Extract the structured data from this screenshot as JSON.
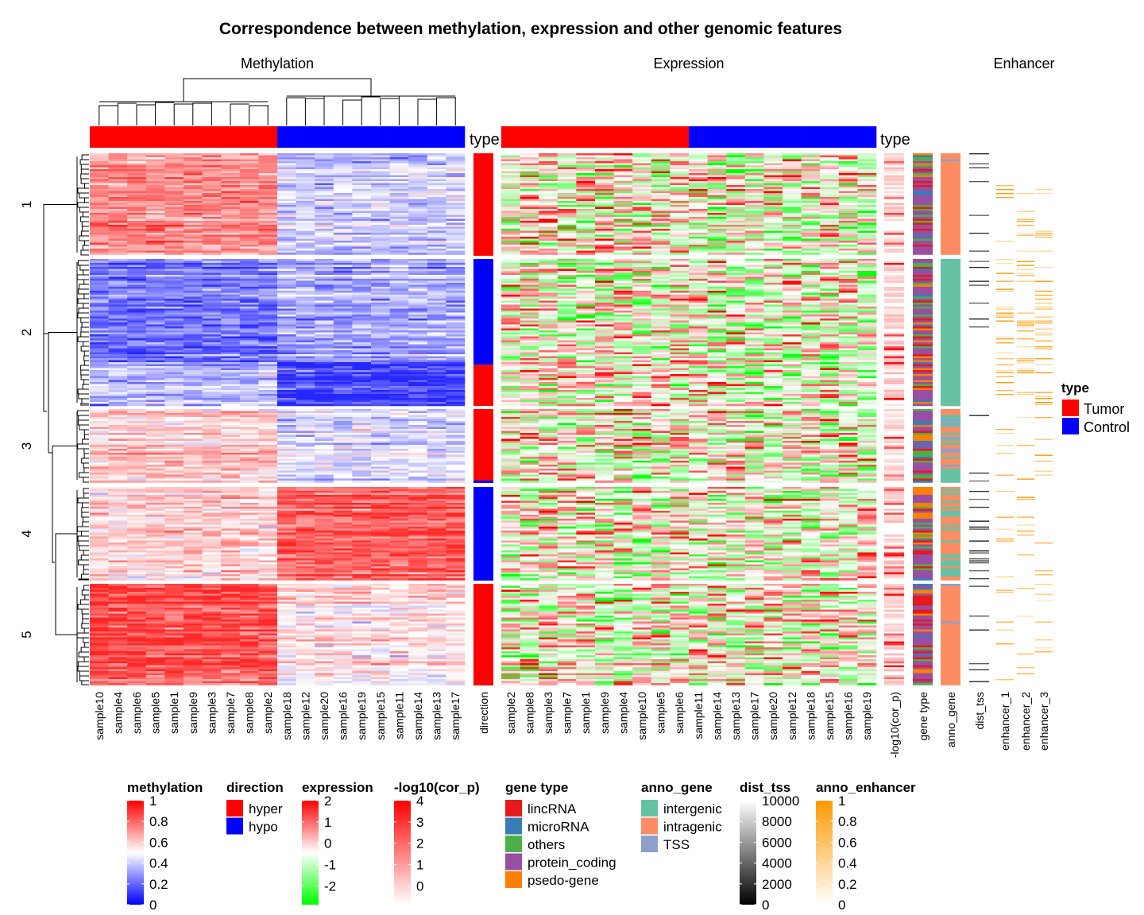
{
  "title": "Correspondence between methylation, expression and other genomic features",
  "panel_titles": {
    "methylation": "Methylation",
    "expression": "Expression",
    "enhancer": "Enhancer"
  },
  "type_label": "type",
  "chart_data": {
    "type": "heatmap",
    "title": "Correspondence between methylation, expression and other genomic features",
    "row_clusters": [
      "1",
      "2",
      "3",
      "4",
      "5"
    ],
    "methylation": {
      "columns": [
        "sample10",
        "sample4",
        "sample6",
        "sample5",
        "sample1",
        "sample9",
        "sample3",
        "sample7",
        "sample8",
        "sample2",
        "sample18",
        "sample12",
        "sample20",
        "sample16",
        "sample19",
        "sample15",
        "sample11",
        "sample14",
        "sample13",
        "sample17"
      ],
      "column_type": [
        "Tumor",
        "Tumor",
        "Tumor",
        "Tumor",
        "Tumor",
        "Tumor",
        "Tumor",
        "Tumor",
        "Tumor",
        "Tumor",
        "Control",
        "Control",
        "Control",
        "Control",
        "Control",
        "Control",
        "Control",
        "Control",
        "Control",
        "Control"
      ],
      "approx_cluster_means": [
        {
          "cluster": "1",
          "Tumor": 0.78,
          "Control": 0.4
        },
        {
          "cluster": "2",
          "Tumor": 0.18,
          "Control": 0.3
        },
        {
          "cluster": "3",
          "Tumor": 0.62,
          "Control": 0.42
        },
        {
          "cluster": "4",
          "Tumor": 0.62,
          "Control": 0.88
        },
        {
          "cluster": "5",
          "Tumor": 0.9,
          "Control": 0.55
        }
      ]
    },
    "direction": {
      "label": "direction",
      "approx_by_cluster": [
        {
          "cluster": "1",
          "value": "hyper"
        },
        {
          "cluster": "2",
          "value": "hypo (upper), hyper (lower)"
        },
        {
          "cluster": "3",
          "value": "hyper"
        },
        {
          "cluster": "4",
          "value": "hypo"
        },
        {
          "cluster": "5",
          "value": "hyper"
        }
      ]
    },
    "expression": {
      "columns": [
        "sample2",
        "sample8",
        "sample3",
        "sample7",
        "sample1",
        "sample9",
        "sample4",
        "sample10",
        "sample5",
        "sample6",
        "sample11",
        "sample14",
        "sample13",
        "sample17",
        "sample20",
        "sample12",
        "sample18",
        "sample15",
        "sample16",
        "sample19"
      ],
      "column_type": [
        "Tumor",
        "Tumor",
        "Tumor",
        "Tumor",
        "Tumor",
        "Tumor",
        "Tumor",
        "Tumor",
        "Tumor",
        "Tumor",
        "Control",
        "Control",
        "Control",
        "Control",
        "Control",
        "Control",
        "Control",
        "Control",
        "Control",
        "Control"
      ],
      "range": [
        -2,
        2
      ]
    },
    "row_annotations": [
      "-log10(cor_p)",
      "gene type",
      "anno_gene",
      "dist_tss"
    ],
    "anno_gene_by_cluster": [
      {
        "cluster": "1",
        "dominant": "intragenic"
      },
      {
        "cluster": "2",
        "dominant": "intergenic"
      },
      {
        "cluster": "3",
        "dominant": "mixed"
      },
      {
        "cluster": "4",
        "dominant": "intragenic/intergenic mix"
      },
      {
        "cluster": "5",
        "dominant": "intragenic"
      }
    ],
    "enhancer_columns": [
      "enhancer_1",
      "enhancer_2",
      "enhancer_3"
    ],
    "legend_placement": "right (type) and bottom (others)"
  },
  "type_legend": {
    "title": "type",
    "items": [
      {
        "label": "Tumor",
        "color": "#FF0000"
      },
      {
        "label": "Control",
        "color": "#0000FF"
      }
    ]
  },
  "legends": {
    "methylation": {
      "title": "methylation",
      "ticks": [
        "1",
        "0.8",
        "0.6",
        "0.4",
        "0.2",
        "0"
      ],
      "colors": [
        "#FF0000",
        "#FFFFFF",
        "#0000FF"
      ]
    },
    "direction": {
      "title": "direction",
      "items": [
        {
          "label": "hyper",
          "color": "#FF0000"
        },
        {
          "label": "hypo",
          "color": "#0000FF"
        }
      ]
    },
    "expression": {
      "title": "expression",
      "ticks": [
        "2",
        "1",
        "0",
        "-1",
        "-2"
      ],
      "colors": [
        "#FF0000",
        "#FFFFFF",
        "#00FF00"
      ]
    },
    "cor_p": {
      "title": "-log10(cor_p)",
      "ticks": [
        "4",
        "3",
        "2",
        "1",
        "0"
      ],
      "colors": [
        "#FF0000",
        "#FFFFFF"
      ]
    },
    "gene_type": {
      "title": "gene type",
      "items": [
        {
          "label": "lincRNA",
          "color": "#E41A1C"
        },
        {
          "label": "microRNA",
          "color": "#377EB8"
        },
        {
          "label": "others",
          "color": "#4DAF4A"
        },
        {
          "label": "protein_coding",
          "color": "#984EA3"
        },
        {
          "label": "psedo-gene",
          "color": "#FF7F00"
        }
      ]
    },
    "anno_gene": {
      "title": "anno_gene",
      "items": [
        {
          "label": "intergenic",
          "color": "#66C2A5"
        },
        {
          "label": "intragenic",
          "color": "#FC8D62"
        },
        {
          "label": "TSS",
          "color": "#8DA0CB"
        }
      ]
    },
    "dist_tss": {
      "title": "dist_tss",
      "ticks": [
        "10000",
        "8000",
        "6000",
        "4000",
        "2000",
        "0"
      ],
      "colors": [
        "#FFFFFF",
        "#000000"
      ]
    },
    "anno_enhancer": {
      "title": "anno_enhancer",
      "ticks": [
        "1",
        "0.8",
        "0.6",
        "0.4",
        "0.2",
        "0"
      ],
      "colors": [
        "#FF9900",
        "#FFFFFF"
      ]
    }
  }
}
